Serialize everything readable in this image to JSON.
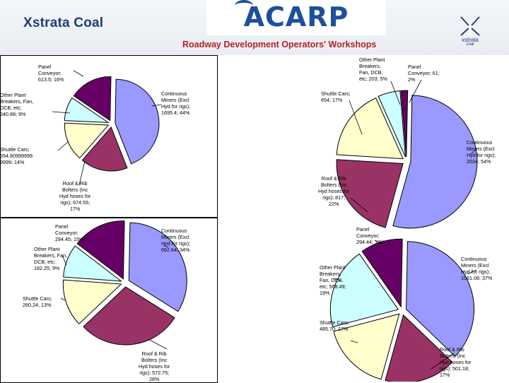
{
  "header": {
    "company": "Xstrata Coal",
    "acarp_logo": "ACARP",
    "subtitle": "Roadway Development Operators' Workshops",
    "logo_right_name": "xstrata",
    "logo_right_sub": "coal"
  },
  "colors": {
    "continuous": "#9999ff",
    "roof_bolt": "#993366",
    "shuttle": "#ffffcc",
    "other_plant": "#ccffff",
    "panel_conveyor": "#660066"
  },
  "chart_data": [
    {
      "type": "pie",
      "name": "pie-top-left",
      "slices": [
        {
          "category": "Continuous Miners",
          "value": 1695.4,
          "percent": 44,
          "color_key": "continuous",
          "label": [
            "Continuous",
            "Miners (Excl",
            "Hyd for rigs);",
            "1695.4; 44%"
          ]
        },
        {
          "category": "Roof & Rib Bolters",
          "value": 674.55,
          "percent": 17,
          "color_key": "roof_bolt",
          "label": [
            "Roof & Rib",
            "Bolters (Inc",
            "Hyd hoses for",
            "rigs); 674.55;",
            "17%"
          ]
        },
        {
          "category": "Shuttle Cars",
          "value": 554.80999999,
          "percent": 14,
          "color_key": "shuttle",
          "label": [
            "Shuttle Cars;",
            "554.80999999",
            "9999; 14%"
          ]
        },
        {
          "category": "Other Plant",
          "value": 340.88,
          "percent": 9,
          "color_key": "other_plant",
          "label": [
            "Other Plant",
            "Breakers, Fan,",
            "DCB, etc;",
            "340.88; 9%"
          ]
        },
        {
          "category": "Panel Conveyor",
          "value": 613.5,
          "percent": 16,
          "color_key": "panel_conveyor",
          "label": [
            "Panel",
            "Conveyor;",
            "613.5; 16%"
          ]
        }
      ]
    },
    {
      "type": "pie",
      "name": "pie-top-right",
      "slices": [
        {
          "category": "Continuous Miners",
          "value": 2034,
          "percent": 54,
          "color_key": "continuous",
          "label": [
            "Continuous",
            "Miners (Excl",
            "Hyd for rigs);",
            "2034; 54%"
          ]
        },
        {
          "category": "Roof & Rib Bolters",
          "value": 817,
          "percent": 22,
          "color_key": "roof_bolt",
          "label": [
            "Roof & Rib",
            "Bolters (Inc",
            "Hyd hoses for",
            "rigs); 817;",
            "22%"
          ]
        },
        {
          "category": "Shuttle Cars",
          "value": 654,
          "percent": 17,
          "color_key": "shuttle",
          "label": [
            "Shuttle Cars;",
            "654; 17%"
          ]
        },
        {
          "category": "Other Plant",
          "value": 203,
          "percent": 5,
          "color_key": "other_plant",
          "label": [
            "Other Plant",
            "Breakers,",
            "Fan, DCB,",
            "etc; 203; 5%"
          ]
        },
        {
          "category": "Panel Conveyor",
          "value": 61,
          "percent": 2,
          "color_key": "panel_conveyor",
          "label": [
            "Panel",
            "Conveyor; 61;",
            "2%"
          ]
        }
      ]
    },
    {
      "type": "pie",
      "name": "pie-bottom-left",
      "slices": [
        {
          "category": "Continuous Miners",
          "value": 662.64,
          "percent": 34,
          "color_key": "continuous",
          "label": [
            "Continuous",
            "Miners (Excl",
            "Hyd for rigs);",
            "662.64; 34%"
          ]
        },
        {
          "category": "Roof & Rib Bolters",
          "value": 572.75,
          "percent": 28,
          "color_key": "roof_bolt",
          "label": [
            "Roof & Rib",
            "Bolters (Inc",
            "Hyd hoses for",
            "rigs); 572.75;",
            "28%"
          ]
        },
        {
          "category": "Shuttle Cars",
          "value": 260.24,
          "percent": 13,
          "color_key": "shuttle",
          "label": [
            "Shuttle Cars;",
            "260.24; 13%"
          ]
        },
        {
          "category": "Other Plant",
          "value": 182.25,
          "percent": 9,
          "color_key": "other_plant",
          "label": [
            "Other Plant",
            "Breakers, Fan,",
            "DCB, etc;",
            "182.25; 9%"
          ]
        },
        {
          "category": "Panel Conveyor",
          "value": 294.45,
          "percent": 15,
          "color_key": "panel_conveyor",
          "label": [
            "Panel",
            "Conveyor;",
            "294.45; 15%"
          ]
        }
      ]
    },
    {
      "type": "pie",
      "name": "pie-bottom-right",
      "slices": [
        {
          "category": "Continuous Miners",
          "value": 1081.08,
          "percent": 37,
          "color_key": "continuous",
          "label": [
            "Continuous",
            "Miners (Excl",
            "Hyd for rigs);",
            "1081.08; 37%"
          ]
        },
        {
          "category": "Roof & Rib Bolters",
          "value": 501.18,
          "percent": 17,
          "color_key": "roof_bolt",
          "label": [
            "Roof & Rib",
            "Bolters (Inc",
            "Hyd hoses for",
            "rigs); 501.18;",
            "17%"
          ]
        },
        {
          "category": "Shuttle Cars",
          "value": 485.7,
          "percent": 17,
          "color_key": "shuttle",
          "label": [
            "Shuttle Cars;",
            "485.70; 17%"
          ]
        },
        {
          "category": "Other Plant",
          "value": 568.49,
          "percent": 19,
          "color_key": "other_plant",
          "label": [
            "Other Plant",
            "Breakers,",
            "Fan, DCB,",
            "etc; 568.49;",
            "19%"
          ]
        },
        {
          "category": "Panel Conveyor",
          "value": 294.44,
          "percent": 10,
          "color_key": "panel_conveyor",
          "label": [
            "Panel",
            "Conveyor;",
            "294.44; 10%"
          ]
        }
      ]
    }
  ]
}
